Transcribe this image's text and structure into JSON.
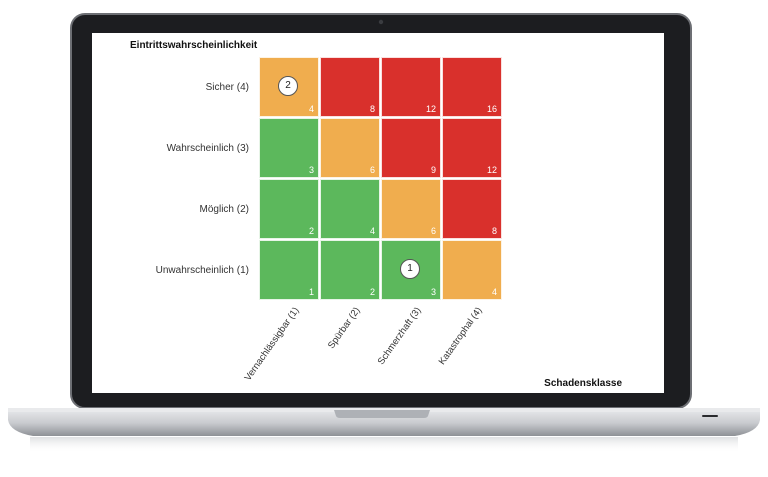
{
  "chart_data": {
    "type": "heatmap",
    "ylabel": "Eintrittswahrscheinlichkeit",
    "xlabel": "Schadensklasse",
    "rows": [
      "Sicher (4)",
      "Wahrscheinlich (3)",
      "Möglich (2)",
      "Unwahrscheinlich (1)"
    ],
    "columns": [
      "Vernachlässigbar (1)",
      "Spürbar (2)",
      "Schmerzhaft (3)",
      "Katastrophal (4)"
    ],
    "values": [
      [
        4,
        8,
        12,
        16
      ],
      [
        3,
        6,
        9,
        12
      ],
      [
        2,
        4,
        6,
        8
      ],
      [
        1,
        2,
        3,
        4
      ]
    ],
    "cell_colors": [
      [
        "orange",
        "red",
        "red",
        "red"
      ],
      [
        "green",
        "orange",
        "red",
        "red"
      ],
      [
        "green",
        "green",
        "orange",
        "red"
      ],
      [
        "green",
        "green",
        "green",
        "orange"
      ]
    ],
    "markers": [
      {
        "label": "2",
        "row": 0,
        "col": 0
      },
      {
        "label": "1",
        "row": 3,
        "col": 2
      }
    ],
    "colors": {
      "green": "#5cb85c",
      "orange": "#f0ad4e",
      "red": "#d9302c"
    }
  }
}
